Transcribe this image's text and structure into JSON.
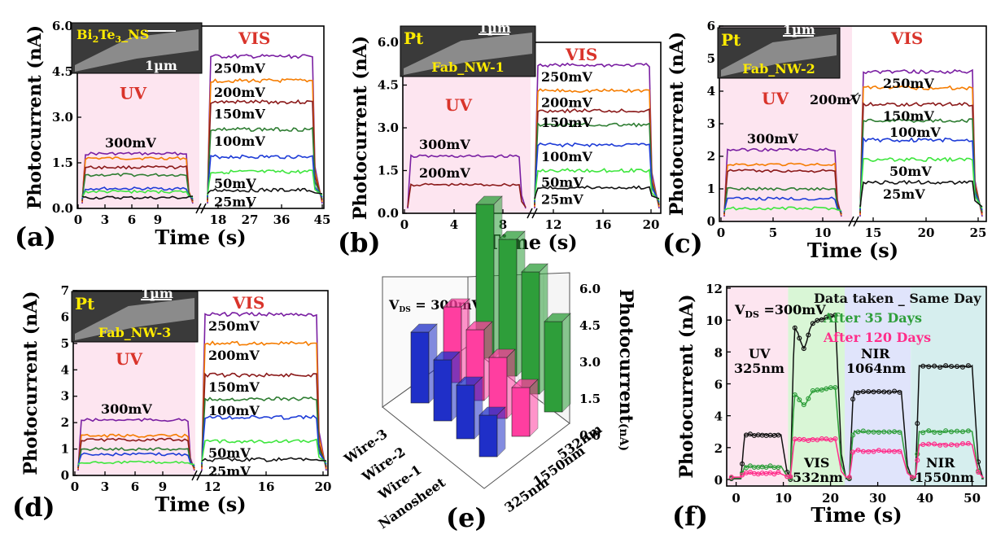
{
  "panels": [
    {
      "id": "a",
      "letter": "(a)",
      "ylabel": "Photocurrent (nA)",
      "xlabel": "Time (s)",
      "xticks": [
        "0",
        "3",
        "6",
        "9",
        "18",
        "27",
        "36",
        "45"
      ],
      "yticks": [
        "0.0",
        "1.5",
        "3.0",
        "4.5",
        "6.0"
      ],
      "ylim": [
        0,
        6
      ],
      "uv_label": "UV",
      "vis_label": "VIS",
      "uv_bias_label": "300mV",
      "inset_label": "Bi2Te3_NS",
      "inset_label_parts": [
        "Bi",
        "2",
        "Te",
        "3",
        "_NS"
      ],
      "scale_label": "1µm",
      "uv_levels": [
        1.8,
        1.65,
        1.35,
        1.1,
        0.65,
        0.55,
        0.35
      ],
      "vis_series": [
        {
          "bias": "250mV",
          "value": 5.0,
          "color": "#7a1fa2"
        },
        {
          "bias": "200mV",
          "value": 4.2,
          "color": "#f57c00"
        },
        {
          "bias": "150mV",
          "value": 3.5,
          "color": "#8b1a1a"
        },
        {
          "bias": "100mV",
          "value": 2.6,
          "color": "#2e7d32"
        },
        {
          "bias": "",
          "value": 1.7,
          "color": "#1e3cd7"
        },
        {
          "bias": "50mV",
          "value": 1.2,
          "color": "#3ee63e"
        },
        {
          "bias": "25mV",
          "value": 0.6,
          "color": "#111111"
        }
      ]
    },
    {
      "id": "b",
      "letter": "(b)",
      "ylabel": "Photocurrent (nA)",
      "xlabel": "Time (s)",
      "xticks": [
        "0",
        "4",
        "8",
        "12",
        "16",
        "20"
      ],
      "yticks": [
        "0.0",
        "1.5",
        "3.0",
        "4.5",
        "6.0"
      ],
      "ylim": [
        0,
        6
      ],
      "uv_label": "UV",
      "vis_label": "VIS",
      "uv_series": [
        {
          "bias": "300mV",
          "value": 2.0,
          "color": "#7a1fa2"
        },
        {
          "bias": "200mV",
          "value": 1.0,
          "color": "#8b1a1a"
        }
      ],
      "inset_label": "Fab_NW-1",
      "inset_pt": "Pt",
      "scale_label": "1µm",
      "vis_series": [
        {
          "bias": "250mV",
          "value": 5.2,
          "color": "#7a1fa2"
        },
        {
          "bias": "200mV",
          "value": 4.3,
          "color": "#f57c00"
        },
        {
          "bias": "150mV",
          "value": 3.6,
          "color": "#8b1a1a"
        },
        {
          "bias": "",
          "value": 3.1,
          "color": "#2e7d32"
        },
        {
          "bias": "100mV",
          "value": 2.4,
          "color": "#1e3cd7"
        },
        {
          "bias": "50mV",
          "value": 1.5,
          "color": "#3ee63e"
        },
        {
          "bias": "25mV",
          "value": 0.9,
          "color": "#111111"
        }
      ]
    },
    {
      "id": "c",
      "letter": "(c)",
      "ylabel": "Photocurrent (nA)",
      "xlabel": "Time (s)",
      "xticks": [
        "0",
        "5",
        "10",
        "15",
        "20",
        "25"
      ],
      "yticks": [
        "0",
        "1",
        "2",
        "3",
        "4",
        "5",
        "6"
      ],
      "ylim": [
        0,
        6
      ],
      "uv_label": "UV",
      "vis_label": "VIS",
      "uv_bias_label": "300mV",
      "uv_levels": [
        2.2,
        1.75,
        1.55,
        1.0,
        0.7,
        0.4
      ],
      "inset_label": "Fab_NW-2",
      "inset_pt": "Pt",
      "scale_label": "1µm",
      "vis_series": [
        {
          "bias": "250mV",
          "value": 4.6,
          "color": "#7a1fa2"
        },
        {
          "bias": "",
          "value": 4.1,
          "color": "#f57c00"
        },
        {
          "bias": "150mV",
          "value": 3.6,
          "color": "#8b1a1a"
        },
        {
          "bias": "100mV",
          "value": 3.1,
          "color": "#2e7d32"
        },
        {
          "bias": "",
          "value": 2.5,
          "color": "#1e3cd7"
        },
        {
          "bias": "50mV",
          "value": 1.9,
          "color": "#3ee63e"
        },
        {
          "bias": "25mV",
          "value": 1.2,
          "color": "#111111"
        }
      ],
      "extra_label": "200mV"
    },
    {
      "id": "d",
      "letter": "(d)",
      "ylabel": "Photocurrent (nA)",
      "xlabel": "Time (s)",
      "xticks": [
        "0",
        "3",
        "6",
        "9",
        "12",
        "16",
        "20"
      ],
      "yticks": [
        "0",
        "1",
        "2",
        "3",
        "4",
        "5",
        "6",
        "7"
      ],
      "ylim": [
        0,
        7
      ],
      "uv_label": "UV",
      "vis_label": "VIS",
      "uv_bias_label": "300mV",
      "uv_levels": [
        2.1,
        1.5,
        1.35,
        1.0,
        0.8,
        0.5
      ],
      "inset_label": "Fab_NW-3",
      "inset_pt": "Pt",
      "scale_label": "1µm",
      "vis_series": [
        {
          "bias": "250mV",
          "value": 6.1,
          "color": "#7a1fa2"
        },
        {
          "bias": "200mV",
          "value": 5.0,
          "color": "#f57c00"
        },
        {
          "bias": "150mV",
          "value": 3.8,
          "color": "#8b1a1a"
        },
        {
          "bias": "100mV",
          "value": 2.9,
          "color": "#2e7d32"
        },
        {
          "bias": "",
          "value": 2.2,
          "color": "#1e3cd7"
        },
        {
          "bias": "50mV",
          "value": 1.3,
          "color": "#3ee63e"
        },
        {
          "bias": "25mV",
          "value": 0.6,
          "color": "#111111"
        }
      ]
    }
  ],
  "panel_e": {
    "letter": "(e)",
    "vds_main": "V",
    "vds_sub": "DS",
    "vds_value": " = 300mV",
    "zlabel_main": "Photocurrent",
    "zlabel_unit": "(nA)",
    "zticks": [
      "0.0",
      "1.5",
      "3.0",
      "4.5",
      "6.0"
    ],
    "devices": [
      "Wire-3",
      "Wire-2",
      "Wire-1",
      "Nanosheet"
    ],
    "wavelengths": [
      "532nm",
      "1550nm",
      "325nm"
    ],
    "bars": [
      {
        "wavelength": "532nm",
        "color": "#2e9e3a",
        "values": [
          6.3,
          5.6,
          5.0,
          3.7
        ]
      },
      {
        "wavelength": "1550nm",
        "color": "#ff3ea0",
        "values": [
          3.1,
          2.9,
          2.5,
          2.0
        ]
      },
      {
        "wavelength": "325nm",
        "color": "#1f2fc8",
        "values": [
          2.9,
          2.5,
          2.2,
          1.7
        ]
      }
    ]
  },
  "panel_f": {
    "letter": "(f)",
    "ylabel": "Photocurrent (nA)",
    "xlabel": "Time (s)",
    "xticks": [
      "0",
      "10",
      "20",
      "30",
      "40",
      "50"
    ],
    "yticks": [
      "0",
      "2",
      "4",
      "6",
      "8",
      "10",
      "12"
    ],
    "ylim": [
      0,
      12
    ],
    "xlim": [
      -2,
      53
    ],
    "vds_main": "V",
    "vds_sub": "DS",
    "vds_value": " =300mV",
    "legend": [
      {
        "label": "Data taken _ Same Day",
        "color": "#111111"
      },
      {
        "label": "After 35 Days",
        "color": "#2e9e3a"
      },
      {
        "label": "After 120 Days",
        "color": "#ff2d8a"
      }
    ],
    "regions": [
      {
        "name": "UV",
        "sub": "325nm",
        "from": 0,
        "to": 11,
        "color": "#fde5f0"
      },
      {
        "name": "VIS",
        "sub": "532nm",
        "from": 11,
        "to": 23,
        "color": "#d9f6d6"
      },
      {
        "name": "NIR",
        "sub": "1064nm",
        "from": 23,
        "to": 37,
        "color": "#e0e4fb"
      },
      {
        "name": "NIR",
        "sub": "1550nm",
        "from": 37,
        "to": 53,
        "color": "#d6eeee"
      }
    ],
    "series": [
      {
        "name": "Data taken _ Same Day",
        "color": "#111111",
        "levels": [
          2.8,
          10.3,
          5.5,
          7.1
        ]
      },
      {
        "name": "After 35 Days",
        "color": "#2e9e3a",
        "levels": [
          0.8,
          5.8,
          3.0,
          3.0
        ]
      },
      {
        "name": "After 120 Days",
        "color": "#ff2d8a",
        "levels": [
          0.4,
          2.5,
          1.8,
          2.2
        ]
      }
    ]
  },
  "chart_data": [
    {
      "type": "line",
      "panel": "(a)",
      "ylabel": "Photocurrent (nA)",
      "xlabel": "Time (s)",
      "ylim": [
        0,
        6
      ],
      "series": [
        {
          "name": "250mV",
          "values": [
            5.0
          ]
        },
        {
          "name": "200mV",
          "values": [
            4.2
          ]
        },
        {
          "name": "150mV",
          "values": [
            3.5
          ]
        },
        {
          "name": "100mV",
          "values": [
            2.6
          ]
        },
        {
          "name": "50mV",
          "values": [
            1.2
          ]
        },
        {
          "name": "25mV",
          "values": [
            0.6
          ]
        },
        {
          "name": "300mV",
          "values": [
            1.8
          ]
        }
      ]
    },
    {
      "type": "line",
      "panel": "(b)",
      "ylabel": "Photocurrent (nA)",
      "xlabel": "Time (s)",
      "ylim": [
        0,
        6
      ],
      "series": [
        {
          "name": "300mV",
          "values": [
            2.0
          ]
        },
        {
          "name": "200mV",
          "values": [
            1.0,
            4.3
          ]
        },
        {
          "name": "250mV",
          "values": [
            5.2
          ]
        },
        {
          "name": "150mV",
          "values": [
            3.6
          ]
        },
        {
          "name": "100mV",
          "values": [
            2.4
          ]
        },
        {
          "name": "50mV",
          "values": [
            1.5
          ]
        },
        {
          "name": "25mV",
          "values": [
            0.9
          ]
        }
      ]
    },
    {
      "type": "line",
      "panel": "(c)",
      "ylabel": "Photocurrent (nA)",
      "xlabel": "Time (s)",
      "ylim": [
        0,
        6
      ],
      "series": [
        {
          "name": "250mV",
          "values": [
            4.6
          ]
        },
        {
          "name": "150mV",
          "values": [
            3.6
          ]
        },
        {
          "name": "100mV",
          "values": [
            3.1
          ]
        },
        {
          "name": "50mV",
          "values": [
            1.9
          ]
        },
        {
          "name": "25mV",
          "values": [
            1.2
          ]
        },
        {
          "name": "300mV",
          "values": [
            2.2
          ]
        }
      ]
    },
    {
      "type": "line",
      "panel": "(d)",
      "ylabel": "Photocurrent (nA)",
      "xlabel": "Time (s)",
      "ylim": [
        0,
        7
      ],
      "series": [
        {
          "name": "250mV",
          "values": [
            6.1
          ]
        },
        {
          "name": "200mV",
          "values": [
            5.0
          ]
        },
        {
          "name": "150mV",
          "values": [
            3.8
          ]
        },
        {
          "name": "100mV",
          "values": [
            2.9
          ]
        },
        {
          "name": "50mV",
          "values": [
            1.3
          ]
        },
        {
          "name": "25mV",
          "values": [
            0.6
          ]
        },
        {
          "name": "300mV",
          "values": [
            2.1
          ]
        }
      ]
    },
    {
      "type": "bar",
      "panel": "(e)",
      "categories": [
        "Wire-3",
        "Wire-2",
        "Wire-1",
        "Nanosheet"
      ],
      "ylabel": "Photocurrent (nA)",
      "series": [
        {
          "name": "532nm",
          "values": [
            6.3,
            5.6,
            5.0,
            3.7
          ]
        },
        {
          "name": "1550nm",
          "values": [
            3.1,
            2.9,
            2.5,
            2.0
          ]
        },
        {
          "name": "325nm",
          "values": [
            2.9,
            2.5,
            2.2,
            1.7
          ]
        }
      ]
    },
    {
      "type": "line",
      "panel": "(f)",
      "ylabel": "Photocurrent (nA)",
      "xlabel": "Time (s)",
      "ylim": [
        0,
        12
      ],
      "series": [
        {
          "name": "Data taken _ Same Day",
          "values": [
            2.8,
            10.3,
            5.5,
            7.1
          ]
        },
        {
          "name": "After 35 Days",
          "values": [
            0.8,
            5.8,
            3.0,
            3.0
          ]
        },
        {
          "name": "After 120 Days",
          "values": [
            0.4,
            2.5,
            1.8,
            2.2
          ]
        }
      ]
    }
  ]
}
